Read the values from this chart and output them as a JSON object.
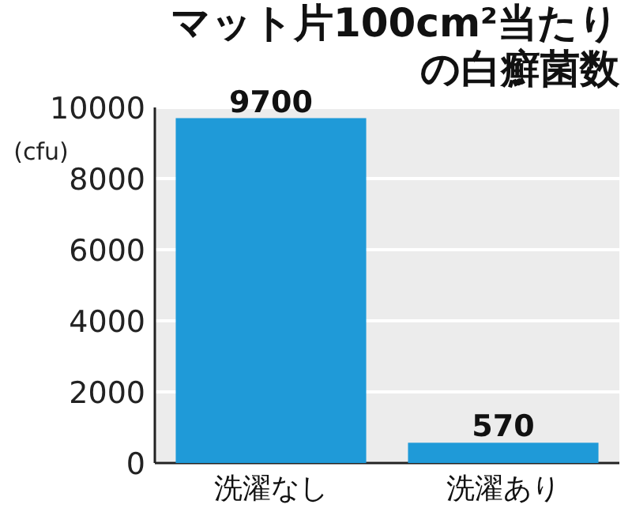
{
  "chart_data": {
    "type": "bar",
    "title": "マット片100cm²当たりの白癬菌数",
    "ylabel": "(cfu)",
    "categories": [
      "洗濯なし",
      "洗濯あり"
    ],
    "values": [
      9700,
      570
    ],
    "color": "#1f9ad8",
    "ylim": [
      0,
      10000
    ],
    "yticks": [
      0,
      2000,
      4000,
      6000,
      8000,
      10000
    ],
    "grid": "y",
    "data_labels": true
  }
}
